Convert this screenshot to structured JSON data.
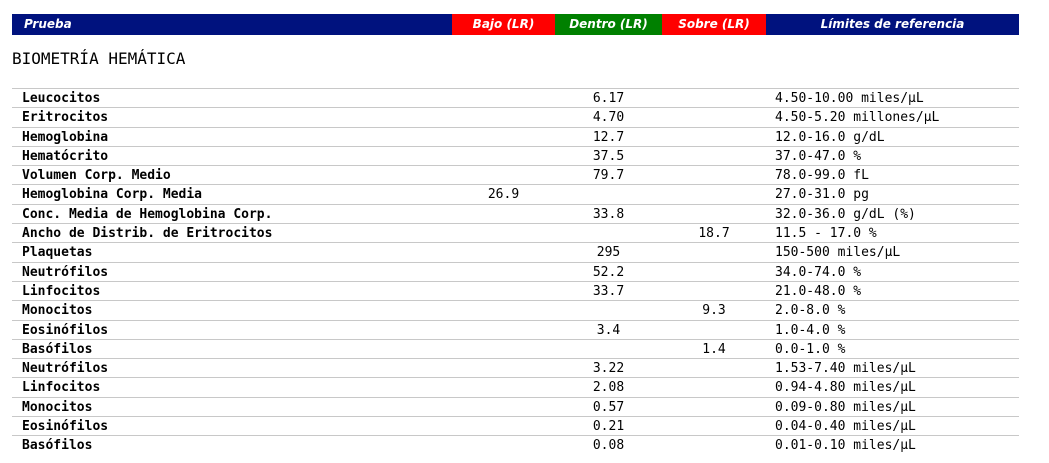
{
  "header": {
    "prueba": "Prueba",
    "bajo": "Bajo (LR)",
    "dentro": "Dentro (LR)",
    "sobre": "Sobre (LR)",
    "limites": "Límites de referencia"
  },
  "section_title": "BIOMETRÍA HEMÁTICA",
  "rows": [
    {
      "name": "Leucocitos",
      "bajo": "",
      "dentro": "6.17",
      "sobre": "",
      "ref": "4.50-10.00 miles/µL"
    },
    {
      "name": "Eritrocitos",
      "bajo": "",
      "dentro": "4.70",
      "sobre": "",
      "ref": "4.50-5.20 millones/µL"
    },
    {
      "name": "Hemoglobina",
      "bajo": "",
      "dentro": "12.7",
      "sobre": "",
      "ref": "12.0-16.0 g/dL"
    },
    {
      "name": "Hematócrito",
      "bajo": "",
      "dentro": "37.5",
      "sobre": "",
      "ref": "37.0-47.0 %"
    },
    {
      "name": "Volumen Corp. Medio",
      "bajo": "",
      "dentro": "79.7",
      "sobre": "",
      "ref": "78.0-99.0 fL"
    },
    {
      "name": "Hemoglobina Corp. Media",
      "bajo": "26.9",
      "dentro": "",
      "sobre": "",
      "ref": "27.0-31.0 pg"
    },
    {
      "name": "Conc. Media de Hemoglobina Corp.",
      "bajo": "",
      "dentro": "33.8",
      "sobre": "",
      "ref": "32.0-36.0 g/dL (%)"
    },
    {
      "name": "Ancho de Distrib. de Eritrocitos",
      "bajo": "",
      "dentro": "",
      "sobre": "18.7",
      "ref": "11.5 - 17.0 %"
    },
    {
      "name": "Plaquetas",
      "bajo": "",
      "dentro": "295",
      "sobre": "",
      "ref": "150-500 miles/µL"
    },
    {
      "name": "Neutrófilos",
      "bajo": "",
      "dentro": "52.2",
      "sobre": "",
      "ref": "34.0-74.0 %"
    },
    {
      "name": "Linfocitos",
      "bajo": "",
      "dentro": "33.7",
      "sobre": "",
      "ref": "21.0-48.0 %"
    },
    {
      "name": "Monocitos",
      "bajo": "",
      "dentro": "",
      "sobre": "9.3",
      "ref": "2.0-8.0 %"
    },
    {
      "name": "Eosinófilos",
      "bajo": "",
      "dentro": "3.4",
      "sobre": "",
      "ref": "1.0-4.0 %"
    },
    {
      "name": "Basófilos",
      "bajo": "",
      "dentro": "",
      "sobre": "1.4",
      "ref": "0.0-1.0 %"
    },
    {
      "name": "Neutrófilos",
      "bajo": "",
      "dentro": "3.22",
      "sobre": "",
      "ref": "1.53-7.40 miles/µL"
    },
    {
      "name": "Linfocitos",
      "bajo": "",
      "dentro": "2.08",
      "sobre": "",
      "ref": "0.94-4.80 miles/µL"
    },
    {
      "name": "Monocitos",
      "bajo": "",
      "dentro": "0.57",
      "sobre": "",
      "ref": "0.09-0.80 miles/µL"
    },
    {
      "name": "Eosinófilos",
      "bajo": "",
      "dentro": "0.21",
      "sobre": "",
      "ref": "0.04-0.40 miles/µL"
    },
    {
      "name": "Basófilos",
      "bajo": "",
      "dentro": "0.08",
      "sobre": "",
      "ref": "0.01-0.10 miles/µL"
    }
  ]
}
